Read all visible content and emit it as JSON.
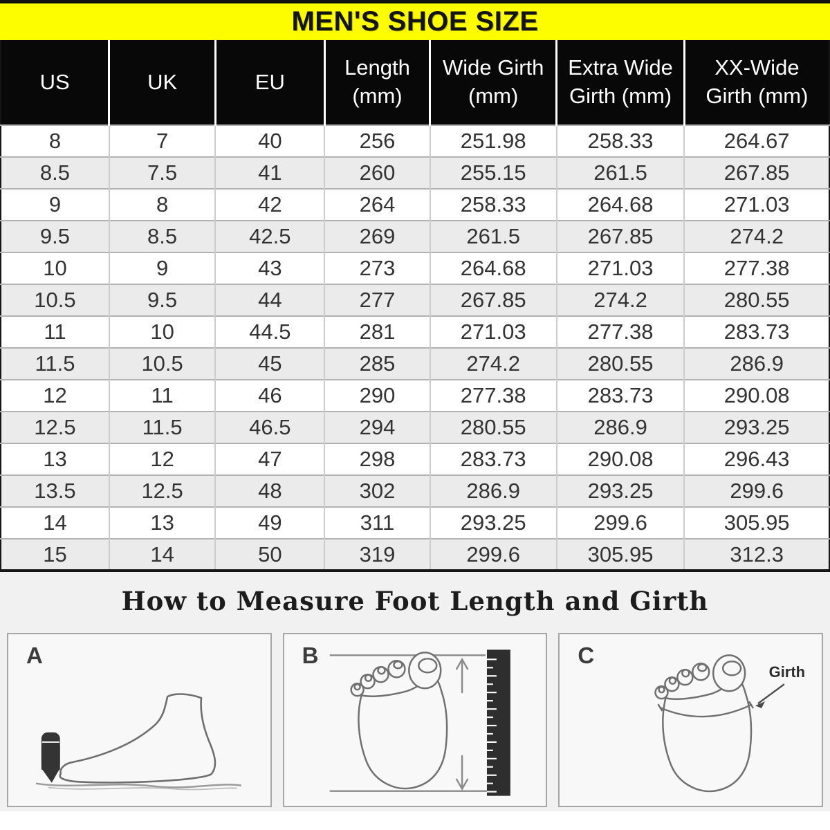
{
  "banner": {
    "title": "MEN'S SHOE SIZE",
    "bg_color": "#fdfd00",
    "text_color": "#141414"
  },
  "table": {
    "columns": [
      {
        "id": "us",
        "lines": [
          "US"
        ]
      },
      {
        "id": "uk",
        "lines": [
          "UK"
        ]
      },
      {
        "id": "eu",
        "lines": [
          "EU"
        ]
      },
      {
        "id": "length",
        "lines": [
          "Length",
          "(mm)"
        ]
      },
      {
        "id": "wide-girth",
        "lines": [
          "Wide Girth",
          "(mm)"
        ]
      },
      {
        "id": "extra-wide-girth",
        "lines": [
          "Extra Wide",
          "Girth (mm)"
        ]
      },
      {
        "id": "xx-wide-girth",
        "lines": [
          "XX-Wide",
          "Girth (mm)"
        ]
      }
    ],
    "header_bg": "#080808",
    "row_alt_bg": "#ebebeb"
  },
  "chart_data": {
    "type": "table",
    "title": "MEN'S SHOE SIZE",
    "columns": [
      "US",
      "UK",
      "EU",
      "Length (mm)",
      "Wide Girth (mm)",
      "Extra Wide Girth (mm)",
      "XX-Wide Girth (mm)"
    ],
    "rows": [
      [
        "8",
        "7",
        "40",
        "256",
        "251.98",
        "258.33",
        "264.67"
      ],
      [
        "8.5",
        "7.5",
        "41",
        "260",
        "255.15",
        "261.5",
        "267.85"
      ],
      [
        "9",
        "8",
        "42",
        "264",
        "258.33",
        "264.68",
        "271.03"
      ],
      [
        "9.5",
        "8.5",
        "42.5",
        "269",
        "261.5",
        "267.85",
        "274.2"
      ],
      [
        "10",
        "9",
        "43",
        "273",
        "264.68",
        "271.03",
        "277.38"
      ],
      [
        "10.5",
        "9.5",
        "44",
        "277",
        "267.85",
        "274.2",
        "280.55"
      ],
      [
        "11",
        "10",
        "44.5",
        "281",
        "271.03",
        "277.38",
        "283.73"
      ],
      [
        "11.5",
        "10.5",
        "45",
        "285",
        "274.2",
        "280.55",
        "286.9"
      ],
      [
        "12",
        "11",
        "46",
        "290",
        "277.38",
        "283.73",
        "290.08"
      ],
      [
        "12.5",
        "11.5",
        "46.5",
        "294",
        "280.55",
        "286.9",
        "293.25"
      ],
      [
        "13",
        "12",
        "47",
        "298",
        "283.73",
        "290.08",
        "296.43"
      ],
      [
        "13.5",
        "12.5",
        "48",
        "302",
        "286.9",
        "293.25",
        "299.6"
      ],
      [
        "14",
        "13",
        "49",
        "311",
        "293.25",
        "299.6",
        "305.95"
      ],
      [
        "15",
        "14",
        "50",
        "319",
        "299.6",
        "305.95",
        "312.3"
      ]
    ]
  },
  "measure_section": {
    "title": "How to Measure Foot Length and Girth",
    "panels": [
      {
        "label": "A",
        "icon": "foot-side-trace-pencil-drawing"
      },
      {
        "label": "B",
        "icon": "foot-top-ruler-length-drawing"
      },
      {
        "label": "C",
        "icon": "foot-top-girth-drawing",
        "annotation": "Girth"
      }
    ]
  }
}
